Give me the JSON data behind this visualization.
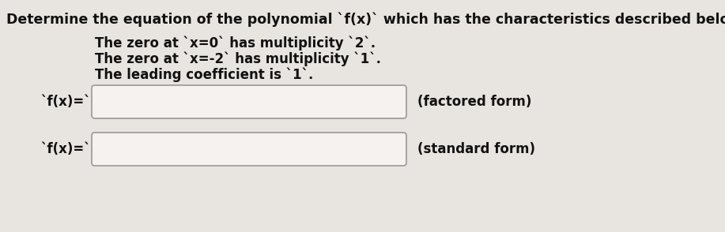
{
  "title": "Determine the equation of the polynomial `f(x)` which has the characteristics described below.",
  "bullet1": "The zero at `x=0` has multiplicity `2`.",
  "bullet2": "The zero at `x=-2` has multiplicity `1`.",
  "bullet3": "The leading coefficient is `1`.",
  "label_factored": "`f(x)=`",
  "label_standard": "`f(x)=`",
  "side_label_factored": "(factored form)",
  "side_label_standard": "(standard form)",
  "bg_color": "#e8e4e0",
  "box_color": "#f5f2ef",
  "box_border_color": "#999999",
  "text_color": "#111111",
  "title_fontsize": 12.5,
  "body_fontsize": 12,
  "label_fontsize": 12,
  "side_label_fontsize": 12
}
